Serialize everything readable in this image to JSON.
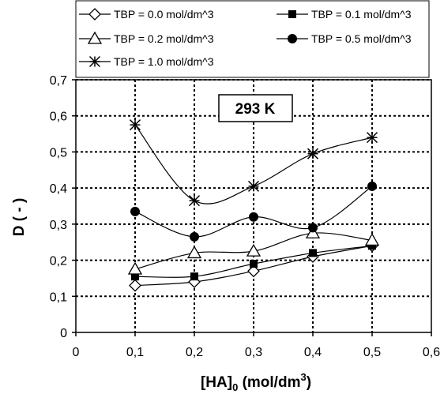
{
  "chart_data": {
    "type": "line",
    "xlabel_main": "[HA]",
    "xlabel_sub": "0",
    "xlabel_unit": " (mol/dm",
    "xlabel_sup": "3",
    "xlabel_close": ")",
    "ylabel": "D ( - )",
    "xlim": [
      0,
      0.6
    ],
    "ylim": [
      0,
      0.7
    ],
    "x_ticks": [
      "0",
      "0,1",
      "0,2",
      "0,3",
      "0,4",
      "0,5",
      "0,6"
    ],
    "y_ticks": [
      "0",
      "0,1",
      "0,2",
      "0,3",
      "0,4",
      "0,5",
      "0,6",
      "0,7"
    ],
    "grid": true,
    "legend_position": "top",
    "annotation": "293 K",
    "series": [
      {
        "name": "TBP = 0.0 mol/dm^3",
        "marker": "diamond-open",
        "x": [
          0.1,
          0.2,
          0.3,
          0.4,
          0.5
        ],
        "values": [
          0.13,
          0.14,
          0.17,
          0.21,
          0.24
        ]
      },
      {
        "name": "TBP = 0.1 mol/dm^3",
        "marker": "square-filled",
        "x": [
          0.1,
          0.2,
          0.3,
          0.4,
          0.5
        ],
        "values": [
          0.155,
          0.155,
          0.19,
          0.22,
          0.24
        ]
      },
      {
        "name": "TBP = 0.2 mol/dm^3",
        "marker": "triangle-open",
        "x": [
          0.1,
          0.2,
          0.3,
          0.4,
          0.5
        ],
        "values": [
          0.175,
          0.22,
          0.225,
          0.275,
          0.255
        ]
      },
      {
        "name": "TBP = 0.5 mol/dm^3",
        "marker": "circle-filled",
        "x": [
          0.1,
          0.2,
          0.3,
          0.4,
          0.5
        ],
        "values": [
          0.335,
          0.265,
          0.32,
          0.29,
          0.405
        ]
      },
      {
        "name": "TBP = 1.0 mol/dm^3",
        "marker": "star",
        "x": [
          0.1,
          0.2,
          0.3,
          0.4,
          0.5
        ],
        "values": [
          0.575,
          0.365,
          0.405,
          0.495,
          0.54
        ]
      }
    ]
  }
}
